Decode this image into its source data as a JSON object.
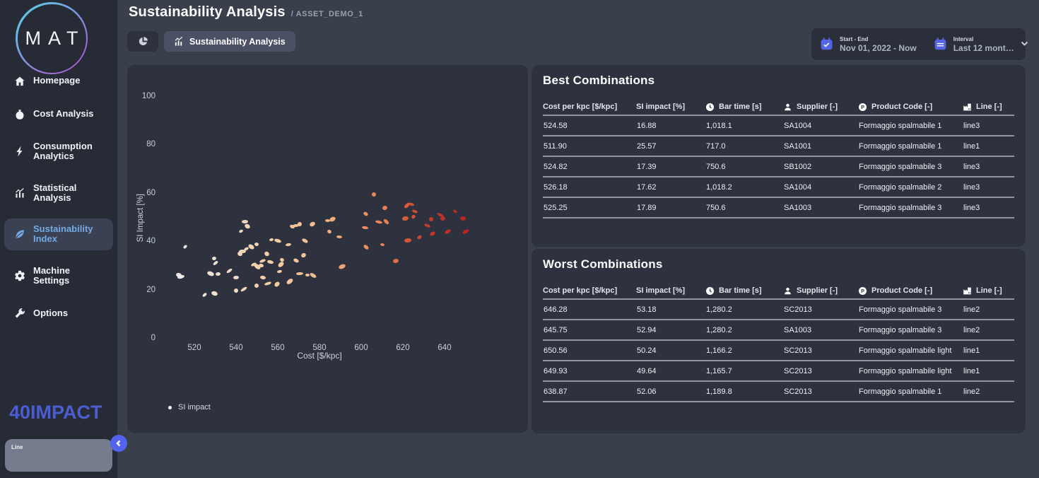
{
  "header": {
    "title": "Sustainability Analysis",
    "subtitle": "/ ASSET_DEMO_1"
  },
  "tabs": [
    {
      "name": "pie-chart-tab",
      "label": ""
    },
    {
      "name": "sustainability-analysis-tab",
      "label": "Sustainability Analysis",
      "active": true
    }
  ],
  "datepicker": {
    "start_end_label": "Start - End",
    "start_end_value": "Nov 01, 2022 - Now",
    "interval_label": "Interval",
    "interval_value": "Last 12 mont…"
  },
  "sidebar": {
    "logo_text": "MAT",
    "brand_text": "40IMPACT",
    "line_panel_label": "Line",
    "items": [
      {
        "label": "Homepage",
        "icon": "home-icon",
        "active": false
      },
      {
        "label": "Cost Analysis",
        "icon": "money-bag-icon",
        "active": false
      },
      {
        "label": "Consumption Analytics",
        "icon": "bolt-icon",
        "active": false
      },
      {
        "label": "Statistical Analysis",
        "icon": "stats-chart-icon",
        "active": false
      },
      {
        "label": "Sustainability Index",
        "icon": "leaf-icon",
        "active": true
      },
      {
        "label": "Machine Settings",
        "icon": "gear-icon",
        "active": false
      },
      {
        "label": "Options",
        "icon": "wrench-icon",
        "active": false
      }
    ]
  },
  "panels": {
    "best": {
      "title": "Best Combinations",
      "columns": [
        {
          "label": "Cost per kpc [$/kpc]",
          "icon": null
        },
        {
          "label": "SI impact [%]",
          "icon": null
        },
        {
          "label": "Bar time [s]",
          "icon": "clock-icon"
        },
        {
          "label": "Supplier [-]",
          "icon": "person-icon"
        },
        {
          "label": "Product Code [-]",
          "icon": "product-code-icon"
        },
        {
          "label": "Line [-]",
          "icon": "factory-icon"
        }
      ],
      "rows": [
        [
          "524.58",
          "16.88",
          "1,018.1",
          "SA1004",
          "Formaggio spalmabile 1",
          "line3"
        ],
        [
          "511.90",
          "25.57",
          "717.0",
          "SA1001",
          "Formaggio spalmabile 1",
          "line1"
        ],
        [
          "524.82",
          "17.39",
          "750.6",
          "SB1002",
          "Formaggio spalmabile 3",
          "line3"
        ],
        [
          "526.18",
          "17.62",
          "1,018.2",
          "SA1004",
          "Formaggio spalmabile 2",
          "line3"
        ],
        [
          "525.25",
          "17.89",
          "750.6",
          "SA1003",
          "Formaggio spalmabile 3",
          "line3"
        ]
      ]
    },
    "worst": {
      "title": "Worst Combinations",
      "columns": [
        {
          "label": "Cost per kpc [$/kpc]",
          "icon": null
        },
        {
          "label": "SI impact [%]",
          "icon": null
        },
        {
          "label": "Bar time [s]",
          "icon": "clock-icon"
        },
        {
          "label": "Supplier [-]",
          "icon": "person-icon"
        },
        {
          "label": "Product Code [-]",
          "icon": "product-code-icon"
        },
        {
          "label": "Line [-]",
          "icon": "factory-icon"
        }
      ],
      "rows": [
        [
          "646.28",
          "53.18",
          "1,280.2",
          "SC2013",
          "Formaggio spalmabile 3",
          "line2"
        ],
        [
          "645.75",
          "52.94",
          "1,280.2",
          "SA1003",
          "Formaggio spalmabile 3",
          "line2"
        ],
        [
          "650.56",
          "50.24",
          "1,166.2",
          "SC2013",
          "Formaggio spalmabile light",
          "line1"
        ],
        [
          "649.93",
          "49.64",
          "1,165.7",
          "SC2013",
          "Formaggio spalmabile light",
          "line1"
        ],
        [
          "638.87",
          "52.06",
          "1,189.8",
          "SC2013",
          "Formaggio spalmabile 1",
          "line2"
        ]
      ]
    }
  },
  "chart_data": {
    "type": "scatter",
    "title": "",
    "xlabel": "Cost [$/kpc]",
    "ylabel": "SI Impact [%]",
    "xlim": [
      505,
      660
    ],
    "ylim": [
      0,
      100
    ],
    "xticks": [
      520,
      540,
      560,
      580,
      600,
      620,
      640
    ],
    "yticks": [
      0,
      20,
      40,
      60,
      80,
      100
    ],
    "grid": false,
    "legend_position": "bottom-left",
    "legend": [
      {
        "label": "SI impact",
        "marker_color": "#ffffff"
      }
    ],
    "series": [
      {
        "name": "SI impact",
        "points": [
          [
            515.5,
            38.0
          ],
          [
            512.4,
            26.3
          ],
          [
            513.5,
            25.6
          ],
          [
            525.0,
            18.0
          ],
          [
            529.5,
            18.6
          ],
          [
            529.5,
            33.3
          ],
          [
            530.0,
            31.2
          ],
          [
            527.7,
            26.8
          ],
          [
            531.4,
            26.8
          ],
          [
            536.9,
            28.2
          ],
          [
            540.0,
            20.0
          ],
          [
            540.0,
            25.3
          ],
          [
            543.6,
            20.4
          ],
          [
            541.8,
            35.0
          ],
          [
            544.2,
            48.3
          ],
          [
            542.4,
            44.4
          ],
          [
            545.5,
            46.4
          ],
          [
            543.0,
            36.0
          ],
          [
            544.8,
            37.0
          ],
          [
            547.3,
            38.0
          ],
          [
            549.7,
            39.0
          ],
          [
            548.5,
            30.7
          ],
          [
            550.3,
            29.7
          ],
          [
            552.2,
            30.2
          ],
          [
            552.8,
            32.2
          ],
          [
            549.7,
            21.9
          ],
          [
            552.8,
            25.3
          ],
          [
            555.2,
            22.9
          ],
          [
            554.6,
            35.1
          ],
          [
            556.5,
            31.7
          ],
          [
            557.1,
            41.0
          ],
          [
            559.5,
            22.4
          ],
          [
            560.1,
            40.5
          ],
          [
            560.7,
            27.8
          ],
          [
            561.4,
            30.7
          ],
          [
            562.0,
            32.7
          ],
          [
            565.0,
            39.0
          ],
          [
            565.7,
            23.8
          ],
          [
            566.9,
            46.4
          ],
          [
            568.7,
            46.9
          ],
          [
            570.5,
            47.4
          ],
          [
            568.7,
            32.2
          ],
          [
            570.5,
            26.8
          ],
          [
            572.4,
            34.6
          ],
          [
            573.0,
            40.5
          ],
          [
            574.2,
            26.3
          ],
          [
            576.6,
            47.4
          ],
          [
            577.0,
            26.3
          ],
          [
            584.0,
            48.8
          ],
          [
            586.4,
            49.3
          ],
          [
            584.6,
            44.4
          ],
          [
            589.5,
            42.0
          ],
          [
            590.7,
            29.7
          ],
          [
            602.3,
            51.7
          ],
          [
            601.7,
            45.9
          ],
          [
            606.0,
            59.6
          ],
          [
            602.3,
            38.0
          ],
          [
            608.5,
            48.3
          ],
          [
            611.5,
            54.2
          ],
          [
            612.2,
            48.3
          ],
          [
            610.3,
            39.0
          ],
          [
            616.5,
            32.2
          ],
          [
            622.0,
            55.2
          ],
          [
            624.4,
            55.6
          ],
          [
            621.3,
            49.8
          ],
          [
            625.0,
            50.3
          ],
          [
            625.6,
            52.7
          ],
          [
            622.5,
            40.5
          ],
          [
            628.0,
            42.0
          ],
          [
            631.7,
            46.9
          ],
          [
            633.5,
            49.3
          ],
          [
            634.1,
            43.4
          ],
          [
            637.8,
            51.2
          ],
          [
            639.0,
            49.8
          ],
          [
            641.5,
            44.4
          ],
          [
            645.2,
            52.7
          ],
          [
            648.9,
            49.8
          ],
          [
            650.1,
            44.4
          ]
        ]
      }
    ],
    "colormap": {
      "by": "cost",
      "stops": [
        [
          512,
          "#ECEAE8"
        ],
        [
          535,
          "#EFDCC8"
        ],
        [
          555,
          "#F4CDA6"
        ],
        [
          575,
          "#F5C096"
        ],
        [
          588,
          "#F2A977"
        ],
        [
          600,
          "#EE9364"
        ],
        [
          612,
          "#E87F51"
        ],
        [
          622,
          "#D55A38"
        ],
        [
          632,
          "#C43B2C"
        ],
        [
          645,
          "#BB2A27"
        ],
        [
          655,
          "#B21F26"
        ]
      ]
    }
  },
  "colors": {
    "accent_blue": "#5264ED",
    "calendar_icon_blue": "#5465E8",
    "sidebar_active_text": "#74A9E2",
    "brand_logo_blue": "#4A5ED1",
    "logo_ring_gradient": [
      "#58D4E9",
      "#BD4FD9"
    ],
    "panel_background": "#2D323E",
    "page_background": "#3A3F4C",
    "sidebar_background": "#272B36",
    "row_divider": "#8F95A1"
  }
}
